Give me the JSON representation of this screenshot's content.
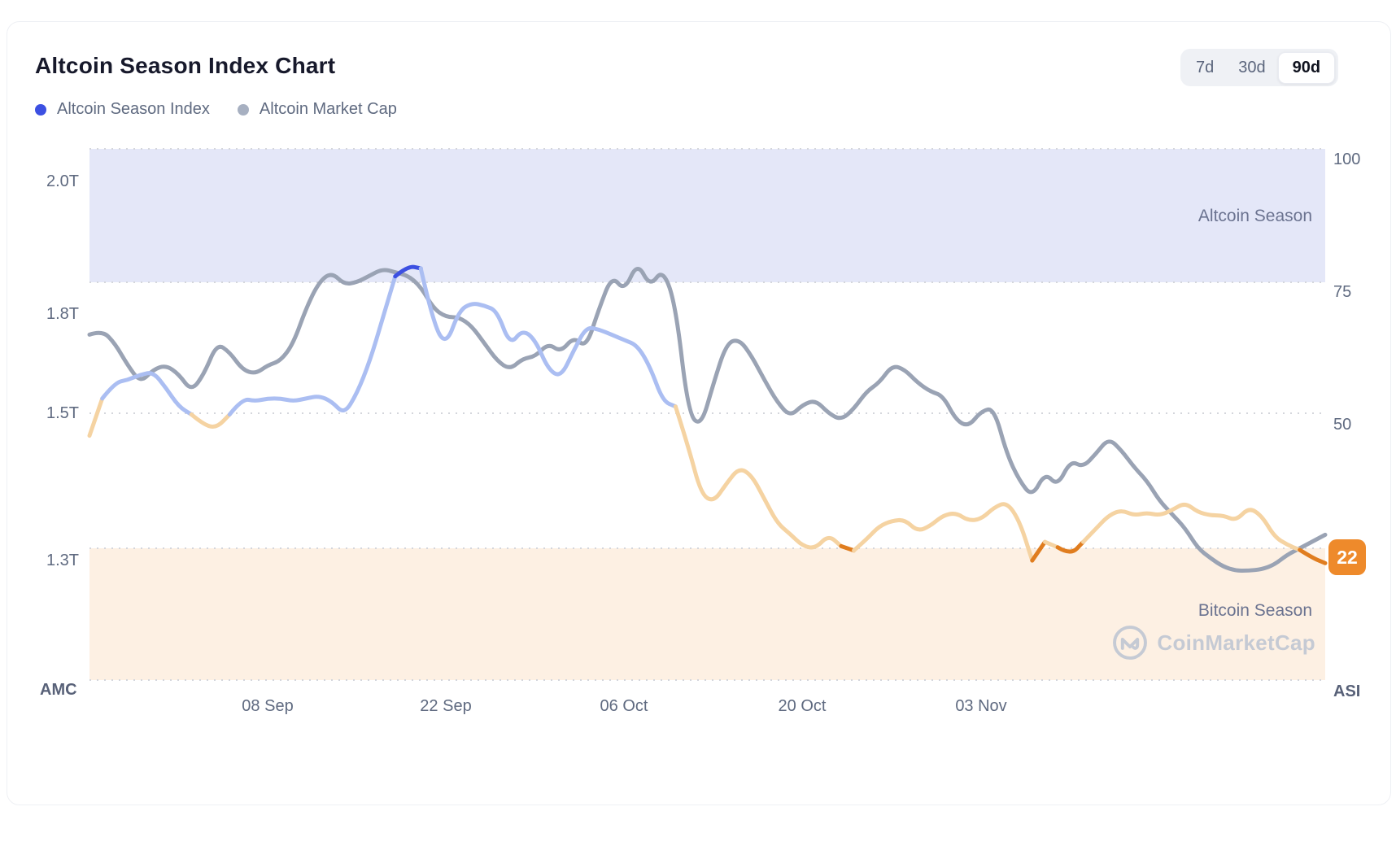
{
  "header": {
    "title": "Altcoin Season Index Chart",
    "range_buttons": {
      "r7": "7d",
      "r30": "30d",
      "r90": "90d"
    },
    "active_range": "90d"
  },
  "legend": {
    "asi_label": "Altcoin Season Index",
    "amc_label": "Altcoin Market Cap"
  },
  "bands": {
    "top_label": "Altcoin Season",
    "bottom_label": "Bitcoin Season"
  },
  "watermark_text": "CoinMarketCap",
  "axes": {
    "left_axis_name": "AMC",
    "right_axis_name": "ASI",
    "left_ticks": {
      "t0": "2.0T",
      "t1": "1.8T",
      "t2": "1.5T",
      "t3": "1.3T"
    },
    "right_ticks": {
      "t0": "100",
      "t1": "75",
      "t2": "50"
    },
    "x_ticks": {
      "t0": "08 Sep",
      "t1": "22 Sep",
      "t2": "06 Oct",
      "t3": "20 Oct",
      "t4": "03 Nov"
    }
  },
  "current_value_badge": "22",
  "colors": {
    "asi_blue_strong": "#3c50e2",
    "asi_periwinkle": "#abbef2",
    "asi_cream": "#f5d3a2",
    "asi_orange_strong": "#e07d1f",
    "amc_gray": "#9aa3b4",
    "badge_orange": "#ee8a2b",
    "band_altcoin": "#e4e7f8",
    "band_bitcoin": "#fdf0e3",
    "grid_dots": "#d4d6dc"
  },
  "chart_data": {
    "type": "line",
    "title": "Altcoin Season Index Chart",
    "x_tick_labels": [
      "08 Sep",
      "22 Sep",
      "06 Oct",
      "20 Oct",
      "03 Nov"
    ],
    "x_tick_day_index": [
      14,
      28,
      42,
      56,
      70
    ],
    "n_points": 98,
    "right_axis": {
      "label": "ASI",
      "range": [
        0,
        100
      ],
      "ticks": [
        100,
        75,
        50
      ],
      "current_value": 22
    },
    "left_axis": {
      "label": "AMC",
      "unit": "trillion USD",
      "tick_values": [
        2.0,
        1.8,
        1.5,
        1.3
      ],
      "note": "ticks evenly spaced on pixel grid (non-linear value scale)"
    },
    "bands": [
      {
        "label": "Altcoin Season",
        "axis": "right",
        "from": 75,
        "to": 100
      },
      {
        "label": "Bitcoin Season",
        "axis": "right",
        "from": 0,
        "to": 25
      }
    ],
    "grid": "dotted horizontal lines at right-axis 0, 25, 50, 75, 100",
    "legend_position": "top-left",
    "series": [
      {
        "name": "Altcoin Season Index",
        "axis": "right",
        "color_rule": {
          "ge75": "#3c50e2",
          "50to75": "#abbef2",
          "25to50": "#f5d3a2",
          "lt25": "#e07d1f"
        },
        "values": [
          46,
          53,
          56,
          56.5,
          57.5,
          58,
          55,
          51.5,
          50,
          48,
          47.5,
          50,
          53,
          52.5,
          53,
          53,
          52.5,
          53,
          53.5,
          52.5,
          50,
          54,
          60,
          68,
          76,
          78,
          77.5,
          67,
          63,
          69.5,
          71,
          70.5,
          69.5,
          63,
          66,
          64,
          58.5,
          57,
          62,
          66.5,
          66,
          65,
          64,
          63,
          59,
          52.5,
          51.5,
          44,
          35,
          33.5,
          37,
          40,
          38.5,
          34,
          29.5,
          27.5,
          25.2,
          24.8,
          27.3,
          25.2,
          24.4,
          26.5,
          29,
          30,
          30.2,
          28,
          29,
          31,
          31.5,
          30,
          30.3,
          32.5,
          33.5,
          30,
          22.5,
          26,
          25,
          23.5,
          26,
          28.5,
          31,
          32,
          31,
          31.5,
          31,
          32,
          33.4,
          31.6,
          31,
          31,
          30,
          32.5,
          31,
          27,
          25.5,
          24.5,
          23,
          22
        ]
      },
      {
        "name": "Altcoin Market Cap",
        "axis": "left",
        "color": "#9aa3b4",
        "values": [
          1.68,
          1.69,
          1.66,
          1.61,
          1.57,
          1.6,
          1.61,
          1.59,
          1.55,
          1.59,
          1.66,
          1.64,
          1.6,
          1.59,
          1.61,
          1.62,
          1.66,
          1.74,
          1.8,
          1.815,
          1.795,
          1.8,
          1.81,
          1.82,
          1.815,
          1.81,
          1.79,
          1.74,
          1.72,
          1.72,
          1.7,
          1.66,
          1.62,
          1.6,
          1.625,
          1.63,
          1.66,
          1.64,
          1.675,
          1.65,
          1.74,
          1.81,
          1.78,
          1.83,
          1.79,
          1.82,
          1.75,
          1.5,
          1.48,
          1.57,
          1.66,
          1.67,
          1.63,
          1.575,
          1.525,
          1.495,
          1.52,
          1.53,
          1.5,
          1.49,
          1.51,
          1.55,
          1.57,
          1.61,
          1.6,
          1.57,
          1.55,
          1.54,
          1.49,
          1.48,
          1.505,
          1.512,
          1.44,
          1.4,
          1.376,
          1.412,
          1.392,
          1.43,
          1.42,
          1.44,
          1.463,
          1.445,
          1.42,
          1.4,
          1.37,
          1.35,
          1.33,
          1.3,
          1.285,
          1.272,
          1.266,
          1.266,
          1.268,
          1.275,
          1.29,
          1.3,
          1.31,
          1.32
        ]
      }
    ]
  }
}
